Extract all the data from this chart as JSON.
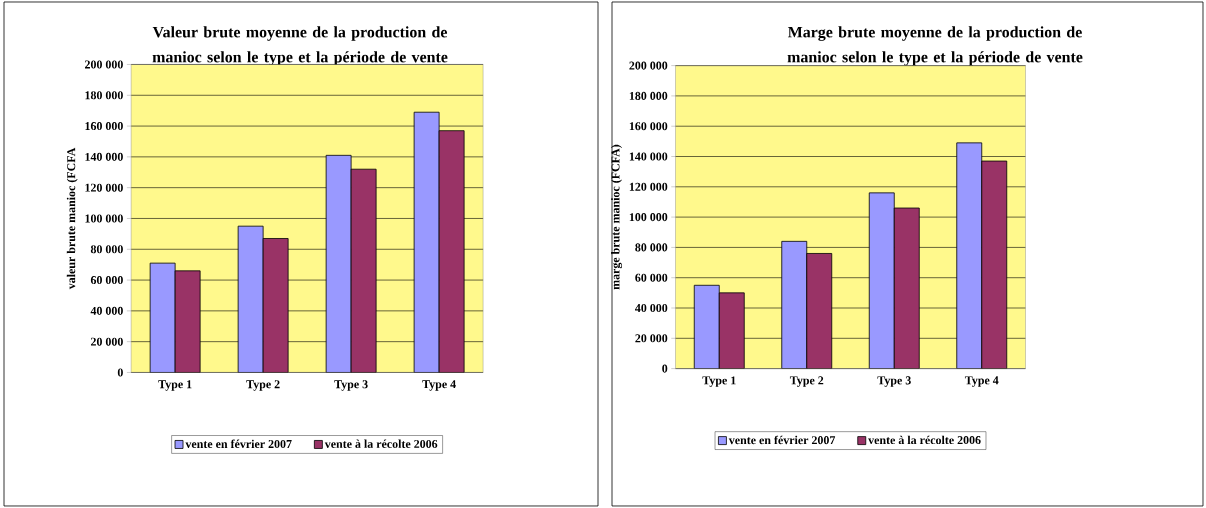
{
  "chart_data": [
    {
      "type": "bar",
      "title": "Valeur brute moyenne de la production de manioc selon le type et la période de vente",
      "ylabel": "valeur brute manioc (FCFA",
      "categories": [
        "Type 1",
        "Type 2",
        "Type 3",
        "Type 4"
      ],
      "series": [
        {
          "name": "vente en février 2007",
          "color": "#9999ff",
          "values": [
            71000,
            95000,
            141000,
            169000
          ]
        },
        {
          "name": "vente à la récolte 2006",
          "color": "#993366",
          "values": [
            66000,
            87000,
            132000,
            157000
          ]
        }
      ],
      "ylim": [
        0,
        200000
      ],
      "yticks": [
        {
          "value": 0,
          "label": "0"
        },
        {
          "value": 20000,
          "label": "20 000"
        },
        {
          "value": 40000,
          "label": "40 000"
        },
        {
          "value": 60000,
          "label": "60 000"
        },
        {
          "value": 80000,
          "label": "80 000"
        },
        {
          "value": 100000,
          "label": "100 000"
        },
        {
          "value": 120000,
          "label": "120 000"
        },
        {
          "value": 140000,
          "label": "140 000"
        },
        {
          "value": 160000,
          "label": "160 000"
        },
        {
          "value": 180000,
          "label": "180 000"
        },
        {
          "value": 200000,
          "label": "200 000"
        }
      ],
      "grid": "y",
      "legend": "bottom"
    },
    {
      "type": "bar",
      "title": "Marge brute moyenne de la production de manioc selon le type et la période de vente",
      "ylabel": "marge brute manioc (FCFA)",
      "categories": [
        "Type 1",
        "Type 2",
        "Type 3",
        "Type 4"
      ],
      "series": [
        {
          "name": "vente en février 2007",
          "color": "#9999ff",
          "values": [
            55000,
            84000,
            116000,
            149000
          ]
        },
        {
          "name": "vente à la récolte 2006",
          "color": "#993366",
          "values": [
            50000,
            76000,
            106000,
            137000
          ]
        }
      ],
      "ylim": [
        0,
        200000
      ],
      "yticks": [
        {
          "value": 0,
          "label": "0"
        },
        {
          "value": 20000,
          "label": "20 000"
        },
        {
          "value": 40000,
          "label": "40 000"
        },
        {
          "value": 60000,
          "label": "60 000"
        },
        {
          "value": 80000,
          "label": "80 000"
        },
        {
          "value": 100000,
          "label": "100 000"
        },
        {
          "value": 120000,
          "label": "120 000"
        },
        {
          "value": 140000,
          "label": "140 000"
        },
        {
          "value": 160000,
          "label": "160 000"
        },
        {
          "value": 180000,
          "label": "180 000"
        },
        {
          "value": 200000,
          "label": "200 000"
        }
      ],
      "grid": "y",
      "legend": "bottom"
    }
  ]
}
